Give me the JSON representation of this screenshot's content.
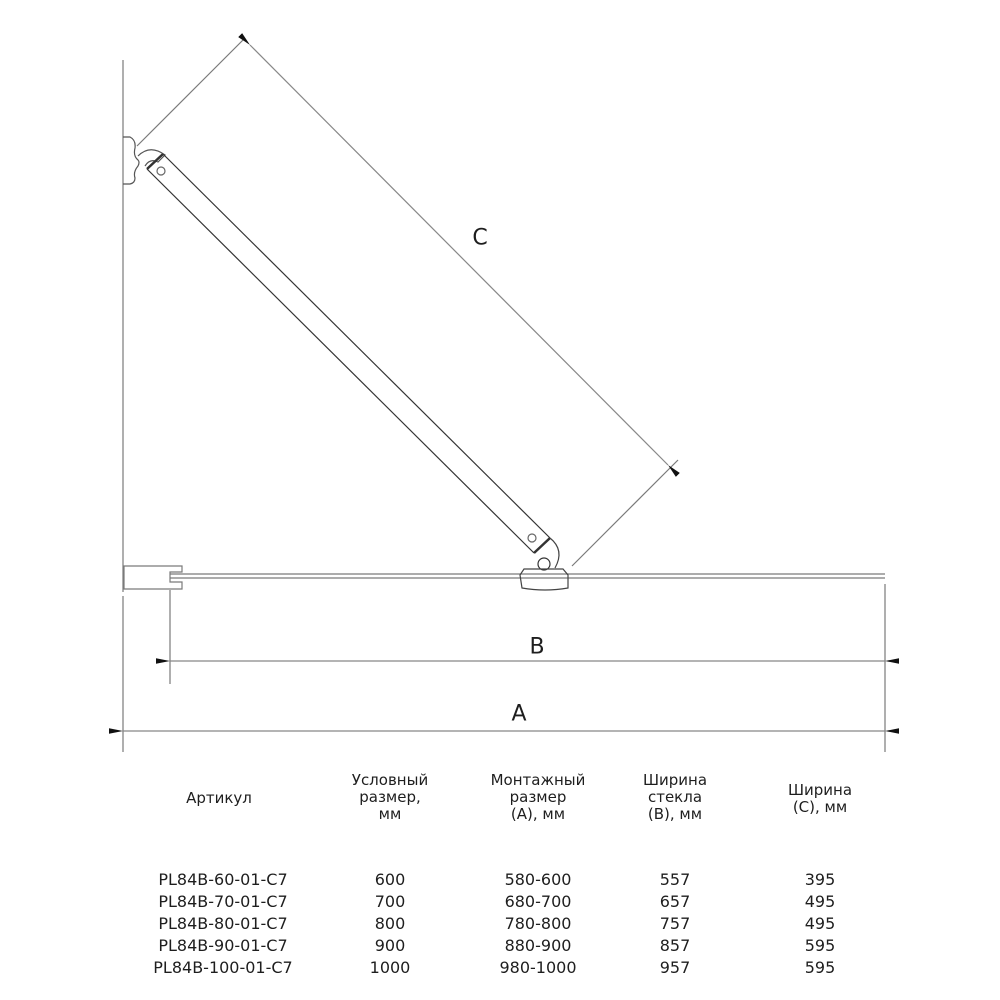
{
  "diagram": {
    "labels": {
      "a": "A",
      "b": "B",
      "c": "C"
    },
    "line_color": "#7a7a7a",
    "text_color": "#1e1e1e"
  },
  "table": {
    "headers": [
      "Артикул",
      "Условный\nразмер,\nмм",
      "Монтажный\nразмер\n(А), мм",
      "Ширина\nстекла\n(В), мм",
      "Ширина\n(С), мм"
    ],
    "rows": [
      [
        "PL84B-60-01-C7",
        "600",
        "580-600",
        "557",
        "395"
      ],
      [
        "PL84B-70-01-C7",
        "700",
        "680-700",
        "657",
        "495"
      ],
      [
        "PL84B-80-01-C7",
        "800",
        "780-800",
        "757",
        "495"
      ],
      [
        "PL84B-90-01-C7",
        "900",
        "880-900",
        "857",
        "595"
      ],
      [
        "PL84B-100-01-C7",
        "1000",
        "980-1000",
        "957",
        "595"
      ]
    ]
  }
}
